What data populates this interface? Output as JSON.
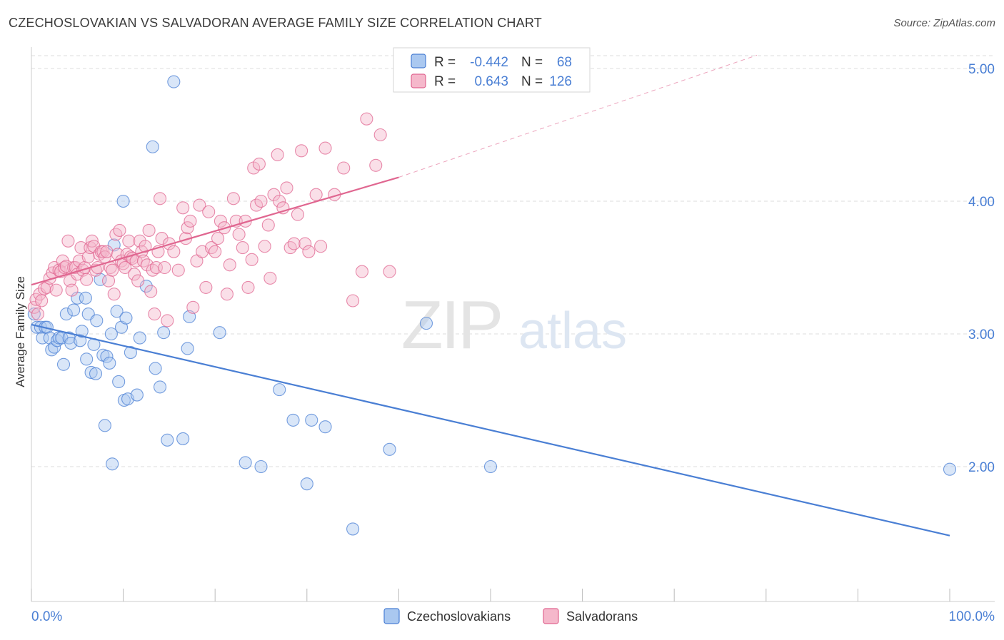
{
  "title": "CZECHOSLOVAKIAN VS SALVADORAN AVERAGE FAMILY SIZE CORRELATION CHART",
  "source": "Source: ZipAtlas.com",
  "watermark": {
    "zip": "ZIP",
    "atlas": "atlas"
  },
  "colors": {
    "blue": "#4a7fd4",
    "blue_fill": "#aac8f0",
    "pink": "#e06690",
    "pink_fill": "#f5b8cb",
    "tick_label": "#4a7fd4",
    "grid": "#dddddd"
  },
  "chart_data": {
    "type": "scatter",
    "title": "CZECHOSLOVAKIAN VS SALVADORAN AVERAGE FAMILY SIZE CORRELATION CHART",
    "xlabel": "",
    "ylabel": "Average Family Size",
    "xlim": [
      0,
      100
    ],
    "ylim": [
      1.0,
      5.15
    ],
    "x_tick_labels": {
      "min": "0.0%",
      "max": "100.0%"
    },
    "y_ticks": [
      2.0,
      3.0,
      4.0,
      5.0
    ],
    "y_tick_labels": [
      "2.00",
      "3.00",
      "4.00",
      "5.00"
    ],
    "grid": true,
    "legend_position": "bottom-center",
    "stats_box": {
      "rows": [
        {
          "r_label": "R =",
          "r_value": "-0.442",
          "n_label": "N =",
          "n_value": "68"
        },
        {
          "r_label": "R =",
          "r_value": "0.643",
          "n_label": "N =",
          "n_value": "126"
        }
      ]
    },
    "series": [
      {
        "name": "Czechoslovakians",
        "color": "#4a7fd4",
        "trend": {
          "x": [
            0.0,
            100.0
          ],
          "y": [
            3.07,
            1.48
          ],
          "dashed_extension": false
        },
        "points": [
          [
            0.3,
            3.15
          ],
          [
            0.6,
            3.05
          ],
          [
            1.0,
            3.05
          ],
          [
            1.2,
            2.97
          ],
          [
            1.5,
            3.05
          ],
          [
            1.7,
            3.05
          ],
          [
            2.0,
            2.97
          ],
          [
            2.2,
            2.88
          ],
          [
            2.5,
            2.9
          ],
          [
            2.8,
            2.95
          ],
          [
            3.0,
            2.97
          ],
          [
            3.3,
            2.97
          ],
          [
            3.5,
            2.77
          ],
          [
            3.8,
            3.15
          ],
          [
            4.1,
            2.97
          ],
          [
            4.3,
            2.93
          ],
          [
            4.6,
            3.18
          ],
          [
            5.0,
            3.27
          ],
          [
            5.3,
            2.95
          ],
          [
            5.5,
            3.02
          ],
          [
            5.9,
            3.27
          ],
          [
            6.0,
            2.81
          ],
          [
            6.2,
            3.15
          ],
          [
            6.5,
            2.71
          ],
          [
            6.8,
            2.92
          ],
          [
            7.0,
            2.7
          ],
          [
            7.1,
            3.1
          ],
          [
            7.5,
            3.41
          ],
          [
            7.8,
            2.84
          ],
          [
            8.0,
            2.31
          ],
          [
            8.2,
            2.83
          ],
          [
            8.5,
            2.78
          ],
          [
            8.7,
            3.0
          ],
          [
            8.8,
            2.02
          ],
          [
            9.0,
            3.67
          ],
          [
            9.3,
            3.17
          ],
          [
            9.5,
            2.64
          ],
          [
            9.8,
            3.05
          ],
          [
            10.0,
            4.0
          ],
          [
            10.1,
            2.5
          ],
          [
            10.3,
            3.12
          ],
          [
            10.5,
            2.51
          ],
          [
            10.8,
            2.86
          ],
          [
            11.5,
            2.54
          ],
          [
            11.8,
            2.97
          ],
          [
            12.5,
            3.36
          ],
          [
            13.2,
            4.41
          ],
          [
            13.5,
            2.74
          ],
          [
            14.0,
            2.6
          ],
          [
            14.4,
            3.01
          ],
          [
            14.8,
            2.2
          ],
          [
            15.5,
            4.9
          ],
          [
            16.5,
            2.21
          ],
          [
            17.0,
            2.89
          ],
          [
            17.2,
            3.13
          ],
          [
            20.5,
            3.01
          ],
          [
            23.3,
            2.03
          ],
          [
            25.0,
            2.0
          ],
          [
            27.0,
            2.58
          ],
          [
            28.5,
            2.35
          ],
          [
            30.0,
            1.87
          ],
          [
            30.5,
            2.35
          ],
          [
            32.0,
            2.3
          ],
          [
            35.0,
            1.53
          ],
          [
            39.0,
            2.13
          ],
          [
            43.0,
            3.08
          ],
          [
            50.0,
            2.0
          ],
          [
            100.0,
            1.98
          ]
        ]
      },
      {
        "name": "Salvadorans",
        "color": "#e06690",
        "trend": {
          "x": [
            0.0,
            40.0
          ],
          "y": [
            3.37,
            4.18
          ],
          "dashed_extension": true,
          "dashed_to": [
            79.0,
            5.1
          ]
        },
        "points": [
          [
            0.3,
            3.2
          ],
          [
            0.5,
            3.26
          ],
          [
            0.7,
            3.15
          ],
          [
            0.9,
            3.3
          ],
          [
            1.1,
            3.25
          ],
          [
            1.4,
            3.34
          ],
          [
            1.7,
            3.35
          ],
          [
            2.0,
            3.42
          ],
          [
            2.3,
            3.46
          ],
          [
            2.5,
            3.5
          ],
          [
            2.7,
            3.33
          ],
          [
            3.0,
            3.48
          ],
          [
            3.2,
            3.47
          ],
          [
            3.4,
            3.55
          ],
          [
            3.6,
            3.5
          ],
          [
            3.8,
            3.51
          ],
          [
            4.0,
            3.7
          ],
          [
            4.2,
            3.4
          ],
          [
            4.4,
            3.33
          ],
          [
            4.6,
            3.5
          ],
          [
            4.8,
            3.5
          ],
          [
            5.0,
            3.45
          ],
          [
            5.2,
            3.55
          ],
          [
            5.4,
            3.65
          ],
          [
            5.6,
            3.48
          ],
          [
            5.8,
            3.5
          ],
          [
            6.0,
            3.41
          ],
          [
            6.2,
            3.58
          ],
          [
            6.4,
            3.65
          ],
          [
            6.6,
            3.7
          ],
          [
            6.8,
            3.66
          ],
          [
            7.0,
            3.48
          ],
          [
            7.2,
            3.5
          ],
          [
            7.4,
            3.6
          ],
          [
            7.6,
            3.62
          ],
          [
            7.8,
            3.62
          ],
          [
            8.0,
            3.58
          ],
          [
            8.2,
            3.62
          ],
          [
            8.4,
            3.4
          ],
          [
            8.6,
            3.5
          ],
          [
            8.8,
            3.48
          ],
          [
            9.0,
            3.3
          ],
          [
            9.2,
            3.75
          ],
          [
            9.4,
            3.6
          ],
          [
            9.6,
            3.78
          ],
          [
            9.8,
            3.55
          ],
          [
            10.0,
            3.53
          ],
          [
            10.2,
            3.5
          ],
          [
            10.4,
            3.6
          ],
          [
            10.6,
            3.7
          ],
          [
            10.8,
            3.58
          ],
          [
            11.0,
            3.57
          ],
          [
            11.2,
            3.45
          ],
          [
            11.4,
            3.55
          ],
          [
            11.6,
            3.4
          ],
          [
            11.8,
            3.7
          ],
          [
            12.0,
            3.62
          ],
          [
            12.2,
            3.55
          ],
          [
            12.4,
            3.66
          ],
          [
            12.6,
            3.52
          ],
          [
            12.8,
            3.78
          ],
          [
            13.0,
            3.32
          ],
          [
            13.2,
            3.48
          ],
          [
            13.4,
            3.15
          ],
          [
            13.6,
            3.5
          ],
          [
            13.8,
            3.62
          ],
          [
            14.0,
            4.02
          ],
          [
            14.2,
            3.72
          ],
          [
            14.5,
            3.5
          ],
          [
            14.8,
            3.1
          ],
          [
            15.0,
            3.68
          ],
          [
            15.5,
            3.62
          ],
          [
            16.0,
            3.48
          ],
          [
            16.5,
            3.95
          ],
          [
            16.8,
            3.72
          ],
          [
            17.0,
            3.8
          ],
          [
            17.3,
            3.85
          ],
          [
            17.6,
            3.2
          ],
          [
            18.0,
            3.55
          ],
          [
            18.3,
            3.97
          ],
          [
            18.6,
            3.62
          ],
          [
            19.0,
            3.35
          ],
          [
            19.3,
            3.92
          ],
          [
            19.6,
            3.65
          ],
          [
            20.0,
            3.62
          ],
          [
            20.3,
            3.72
          ],
          [
            20.6,
            3.85
          ],
          [
            21.0,
            3.8
          ],
          [
            21.3,
            3.3
          ],
          [
            21.6,
            3.52
          ],
          [
            22.0,
            4.02
          ],
          [
            22.3,
            3.85
          ],
          [
            22.6,
            3.75
          ],
          [
            23.0,
            3.65
          ],
          [
            23.3,
            3.85
          ],
          [
            23.6,
            3.35
          ],
          [
            24.0,
            3.56
          ],
          [
            24.2,
            4.25
          ],
          [
            24.5,
            3.97
          ],
          [
            24.8,
            4.28
          ],
          [
            25.0,
            4.0
          ],
          [
            25.4,
            3.66
          ],
          [
            25.8,
            3.82
          ],
          [
            26.0,
            3.42
          ],
          [
            26.4,
            4.05
          ],
          [
            26.8,
            4.35
          ],
          [
            27.0,
            4.0
          ],
          [
            27.4,
            3.95
          ],
          [
            27.8,
            4.1
          ],
          [
            28.2,
            3.65
          ],
          [
            28.6,
            3.68
          ],
          [
            29.0,
            3.9
          ],
          [
            29.4,
            4.38
          ],
          [
            29.8,
            3.68
          ],
          [
            30.2,
            3.62
          ],
          [
            31.0,
            4.05
          ],
          [
            31.5,
            3.66
          ],
          [
            32.0,
            4.4
          ],
          [
            33.0,
            4.05
          ],
          [
            34.0,
            4.25
          ],
          [
            35.0,
            3.25
          ],
          [
            36.0,
            3.47
          ],
          [
            36.5,
            4.62
          ],
          [
            37.5,
            4.27
          ],
          [
            38.0,
            4.5
          ],
          [
            39.0,
            3.47
          ]
        ]
      }
    ]
  }
}
